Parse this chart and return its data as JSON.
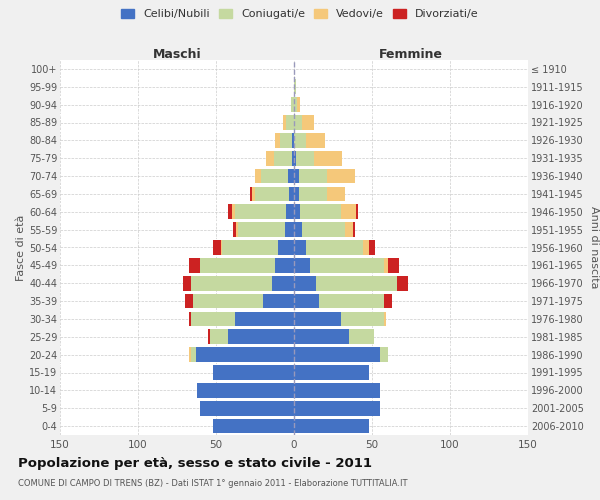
{
  "age_groups": [
    "0-4",
    "5-9",
    "10-14",
    "15-19",
    "20-24",
    "25-29",
    "30-34",
    "35-39",
    "40-44",
    "45-49",
    "50-54",
    "55-59",
    "60-64",
    "65-69",
    "70-74",
    "75-79",
    "80-84",
    "85-89",
    "90-94",
    "95-99",
    "100+"
  ],
  "birth_years": [
    "2006-2010",
    "2001-2005",
    "1996-2000",
    "1991-1995",
    "1986-1990",
    "1981-1985",
    "1976-1980",
    "1971-1975",
    "1966-1970",
    "1961-1965",
    "1956-1960",
    "1951-1955",
    "1946-1950",
    "1941-1945",
    "1936-1940",
    "1931-1935",
    "1926-1930",
    "1921-1925",
    "1916-1920",
    "1911-1915",
    "≤ 1910"
  ],
  "male": {
    "celibe": [
      52,
      60,
      62,
      52,
      63,
      42,
      38,
      20,
      14,
      12,
      10,
      6,
      5,
      3,
      4,
      1,
      1,
      0,
      0,
      0,
      0
    ],
    "coniugato": [
      0,
      0,
      0,
      0,
      3,
      12,
      28,
      45,
      52,
      48,
      36,
      30,
      33,
      22,
      17,
      12,
      8,
      5,
      2,
      0,
      0
    ],
    "vedovo": [
      0,
      0,
      0,
      0,
      1,
      0,
      0,
      0,
      0,
      0,
      1,
      1,
      2,
      2,
      4,
      5,
      3,
      2,
      0,
      0,
      0
    ],
    "divorziato": [
      0,
      0,
      0,
      0,
      0,
      1,
      1,
      5,
      5,
      7,
      5,
      2,
      2,
      1,
      0,
      0,
      0,
      0,
      0,
      0,
      0
    ]
  },
  "female": {
    "nubile": [
      48,
      55,
      55,
      48,
      55,
      35,
      30,
      16,
      14,
      10,
      8,
      5,
      4,
      3,
      3,
      1,
      0,
      0,
      0,
      0,
      0
    ],
    "coniugata": [
      0,
      0,
      0,
      0,
      5,
      16,
      28,
      42,
      52,
      48,
      36,
      28,
      26,
      18,
      18,
      12,
      8,
      5,
      2,
      1,
      0
    ],
    "vedova": [
      0,
      0,
      0,
      0,
      0,
      0,
      1,
      0,
      0,
      2,
      4,
      5,
      10,
      12,
      18,
      18,
      12,
      8,
      2,
      0,
      0
    ],
    "divorziata": [
      0,
      0,
      0,
      0,
      0,
      0,
      0,
      5,
      7,
      7,
      4,
      1,
      1,
      0,
      0,
      0,
      0,
      0,
      0,
      0,
      0
    ]
  },
  "colors": {
    "celibe": "#4472C4",
    "coniugato": "#c5d9a0",
    "vedovo": "#f5c87a",
    "divorziato": "#cc2222"
  },
  "legend_labels": [
    "Celibi/Nubili",
    "Coniugati/e",
    "Vedovi/e",
    "Divorziati/e"
  ],
  "title": "Popolazione per età, sesso e stato civile - 2011",
  "subtitle": "COMUNE DI CAMPO DI TRENS (BZ) - Dati ISTAT 1° gennaio 2011 - Elaborazione TUTTITALIA.IT",
  "xlabel_left": "Maschi",
  "xlabel_right": "Femmine",
  "ylabel_left": "Fasce di età",
  "ylabel_right": "Anni di nascita",
  "xlim": 150,
  "background_color": "#f0f0f0",
  "plot_bg": "#ffffff"
}
